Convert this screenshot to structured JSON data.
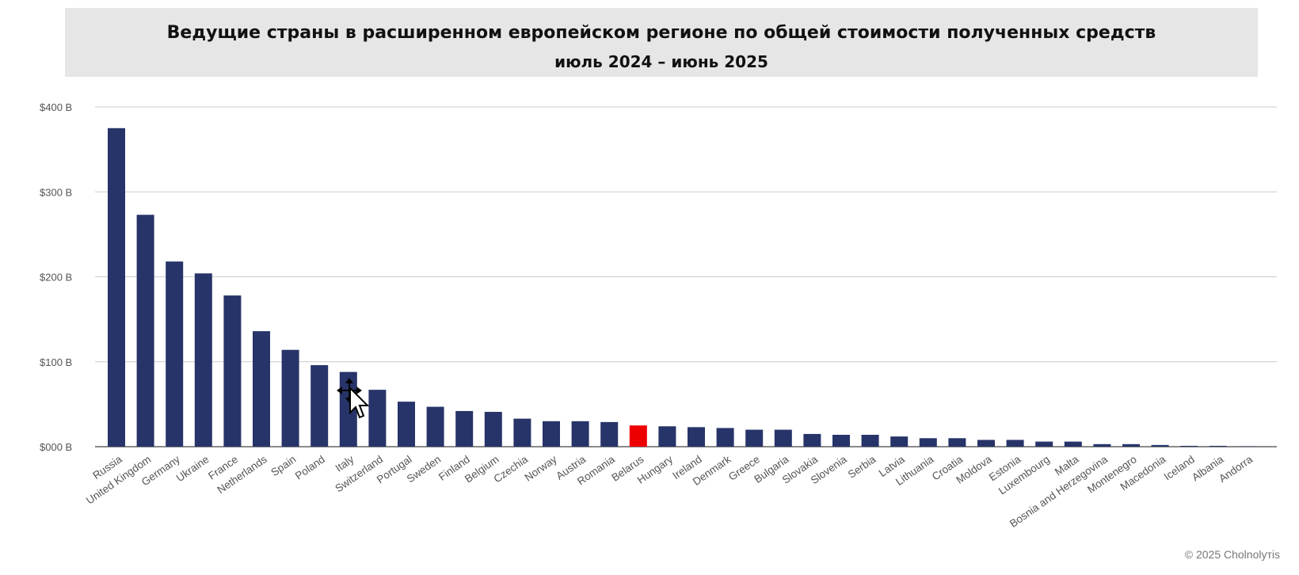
{
  "chart_data": {
    "type": "bar",
    "title": "Ведущие страны в расширенном европейском регионе по общей стоимости полученных средств",
    "subtitle": "июль 2024 – июнь 2025",
    "ylim": [
      0,
      400
    ],
    "yticks": [
      {
        "value": 0,
        "label": "$000 B"
      },
      {
        "value": 100,
        "label": "$100 B"
      },
      {
        "value": 200,
        "label": "$200 B"
      },
      {
        "value": 300,
        "label": "$300 B"
      },
      {
        "value": 400,
        "label": "$400 B"
      }
    ],
    "grid": true,
    "categories": [
      "Russia",
      "United Kingdom",
      "Germany",
      "Ukraine",
      "France",
      "Netherlands",
      "Spain",
      "Poland",
      "Italy",
      "Switzerland",
      "Portugal",
      "Sweden",
      "Finland",
      "Belgium",
      "Czechia",
      "Norway",
      "Austria",
      "Romania",
      "Belarus",
      "Hungary",
      "Ireland",
      "Denmark",
      "Greece",
      "Bulgaria",
      "Slovakia",
      "Slovenia",
      "Serbia",
      "Latvia",
      "Lithuania",
      "Croatia",
      "Moldova",
      "Estonia",
      "Luxembourg",
      "Malta",
      "Bosnia and Herzegovina",
      "Montenegro",
      "Macedonia",
      "Iceland",
      "Albania",
      "Andorra"
    ],
    "values": [
      375,
      273,
      218,
      204,
      178,
      136,
      114,
      96,
      88,
      67,
      53,
      47,
      42,
      41,
      33,
      30,
      30,
      29,
      25,
      24,
      23,
      22,
      20,
      20,
      15,
      14,
      14,
      12,
      10,
      10,
      8,
      8,
      6,
      6,
      3,
      3,
      2,
      1,
      1,
      0.5
    ],
    "colors": {
      "default": "#273469",
      "highlight": "#ee0000"
    },
    "highlight": "Belarus"
  },
  "footer": {
    "copyright": "© 2025 Cholnolyтіs"
  },
  "cursor": {
    "icon": "move-cursor-icon"
  }
}
